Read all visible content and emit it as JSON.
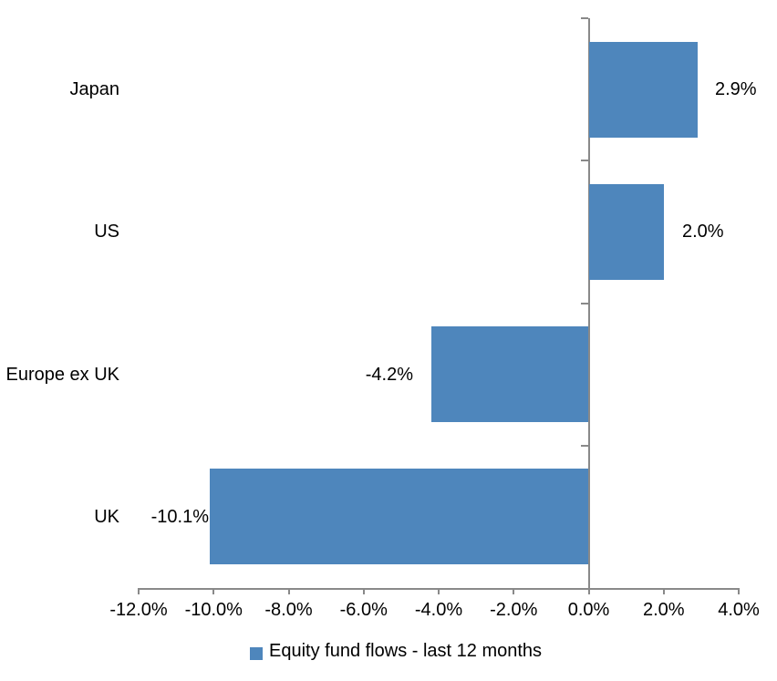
{
  "chart_data": {
    "type": "bar",
    "orientation": "horizontal",
    "title": "",
    "categories": [
      "Japan",
      "US",
      "Europe ex UK",
      "UK"
    ],
    "series": [
      {
        "name": "Equity fund flows - last 12 months",
        "values": [
          2.9,
          2.0,
          -4.2,
          -10.1
        ],
        "data_labels": [
          "2.9%",
          "2.0%",
          "-4.2%",
          "-10.1%"
        ],
        "color": "#4E86BC"
      }
    ],
    "xlabel": "",
    "ylabel": "",
    "xlim": [
      -12.0,
      4.0
    ],
    "xticks": [
      -12,
      -10,
      -8,
      -6,
      -4,
      -2,
      0,
      2,
      4
    ],
    "xtick_labels": [
      "-12.0%",
      "-10.0%",
      "-8.0%",
      "-6.0%",
      "-4.0%",
      "-2.0%",
      "0.0%",
      "2.0%",
      "4.0%"
    ],
    "grid": false,
    "legend_position": "bottom",
    "axis_color": "#898989",
    "text_color": "#000000",
    "background_color": "#FFFFFF"
  }
}
